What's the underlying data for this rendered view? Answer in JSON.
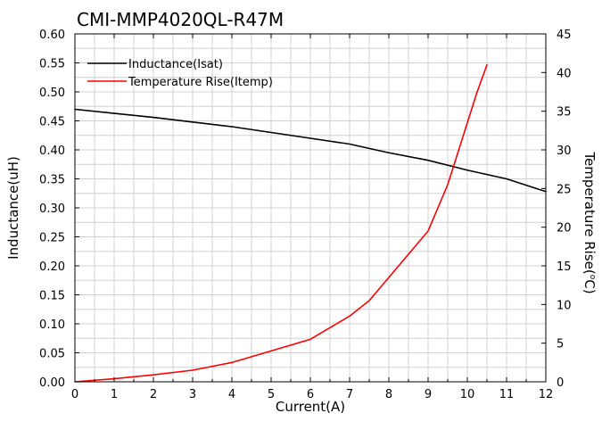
{
  "chart_data": {
    "type": "line",
    "title": "CMI-MMP4020QL-R47M",
    "xlabel": "Current(A)",
    "ylabel": "Inductance(uH)",
    "y2label_main": "Temperature Rise(",
    "y2label_sup": "o",
    "y2label_end": "C)",
    "xlim": [
      0,
      12
    ],
    "ylim": [
      0,
      0.6
    ],
    "y2lim": [
      0,
      45
    ],
    "x_ticks": [
      "0",
      "1",
      "2",
      "3",
      "4",
      "5",
      "6",
      "7",
      "8",
      "9",
      "10",
      "11",
      "12"
    ],
    "y_ticks": [
      "0.00",
      "0.05",
      "0.10",
      "0.15",
      "0.20",
      "0.25",
      "0.30",
      "0.35",
      "0.40",
      "0.45",
      "0.50",
      "0.55",
      "0.60"
    ],
    "y2_ticks": [
      "0",
      "5",
      "10",
      "15",
      "20",
      "25",
      "30",
      "35",
      "40",
      "45"
    ],
    "grid": true,
    "legend_position": "top-left",
    "series": [
      {
        "name": "Inductance(Isat)",
        "axis": "left",
        "color": "#000000",
        "x": [
          0,
          1,
          2,
          3,
          4,
          5,
          6,
          7,
          8,
          9,
          10,
          11,
          12
        ],
        "values": [
          0.47,
          0.463,
          0.456,
          0.448,
          0.44,
          0.43,
          0.42,
          0.41,
          0.395,
          0.382,
          0.365,
          0.35,
          0.328
        ]
      },
      {
        "name": "Temperature Rise(Itemp)",
        "axis": "right",
        "color": "#ff0000",
        "x": [
          0,
          1,
          2,
          3,
          4,
          5,
          6,
          7,
          7.5,
          8,
          8.5,
          9,
          9.5,
          10,
          10.25,
          10.5
        ],
        "values": [
          0,
          0.4,
          0.9,
          1.5,
          2.5,
          4.0,
          5.5,
          8.5,
          10.5,
          13.5,
          16.5,
          19.5,
          25.5,
          33.5,
          37.5,
          41.0
        ]
      }
    ]
  }
}
